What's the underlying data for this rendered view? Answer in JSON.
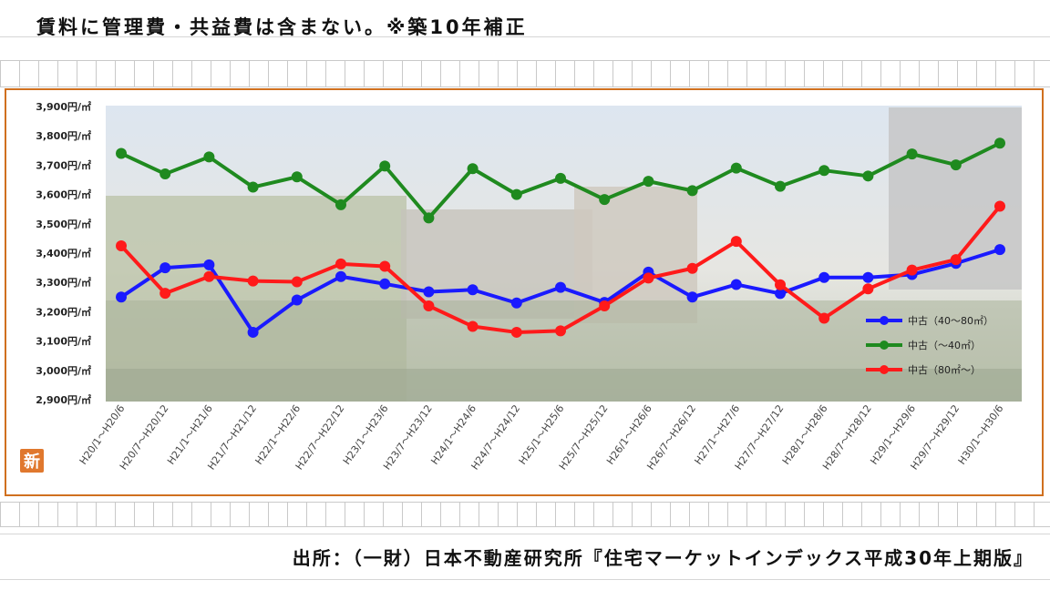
{
  "header": {
    "note": "賃料に管理費・共益費は含まない。※築10年補正"
  },
  "footer": {
    "source": "出所：（一財）日本不動産研究所『住宅マーケットインデックス平成30年上期版』"
  },
  "badge": {
    "label": "新"
  },
  "colors": {
    "frame": "#d0701f",
    "blue": "#1a1aff",
    "green": "#1f8a1f",
    "red": "#ff1a1a"
  },
  "chart_data": {
    "type": "line",
    "title": "",
    "xlabel": "",
    "ylabel": "",
    "ylim": [
      2900,
      3900
    ],
    "y_ticks": [
      2900,
      3000,
      3100,
      3200,
      3300,
      3400,
      3500,
      3600,
      3700,
      3800,
      3900
    ],
    "y_tick_labels": [
      "2,900円/㎡",
      "3,000円/㎡",
      "3,100円/㎡",
      "3,200円/㎡",
      "3,300円/㎡",
      "3,400円/㎡",
      "3,500円/㎡",
      "3,600円/㎡",
      "3,700円/㎡",
      "3,800円/㎡",
      "3,900円/㎡"
    ],
    "categories": [
      "H20/1～H20/6",
      "H20/7～H20/12",
      "H21/1～H21/6",
      "H21/7～H21/12",
      "H22/1～H22/6",
      "H22/7～H22/12",
      "H23/1～H23/6",
      "H23/7～H23/12",
      "H24/1～H24/6",
      "H24/7～H24/12",
      "H25/1～H25/6",
      "H25/7～H25/12",
      "H26/1～H26/6",
      "H26/7～H26/12",
      "H27/1～H27/6",
      "H27/7～H27/12",
      "H28/1～H28/6",
      "H28/7～H28/12",
      "H29/1～H29/6",
      "H29/7～H29/12",
      "H30/1～H30/6"
    ],
    "series": [
      {
        "name": "中古（40～80㎡）",
        "color": "#1a1aff",
        "values": [
          3250,
          3350,
          3360,
          3130,
          3240,
          3320,
          3295,
          3268,
          3275,
          3230,
          3283,
          3232,
          3335,
          3250,
          3293,
          3262,
          3317,
          3317,
          3327,
          3365,
          3412
        ]
      },
      {
        "name": "中古（～40㎡）",
        "color": "#1f8a1f",
        "values": [
          3740,
          3670,
          3728,
          3625,
          3660,
          3565,
          3697,
          3520,
          3688,
          3600,
          3655,
          3583,
          3645,
          3613,
          3690,
          3628,
          3682,
          3663,
          3738,
          3701,
          3775
        ]
      },
      {
        "name": "中古（80㎡～）",
        "color": "#ff1a1a",
        "values": [
          3425,
          3263,
          3320,
          3305,
          3302,
          3363,
          3355,
          3220,
          3150,
          3130,
          3135,
          3220,
          3315,
          3348,
          3440,
          3292,
          3178,
          3278,
          3342,
          3378,
          3560
        ]
      }
    ],
    "legend_position": "right-middle",
    "grid": false
  }
}
